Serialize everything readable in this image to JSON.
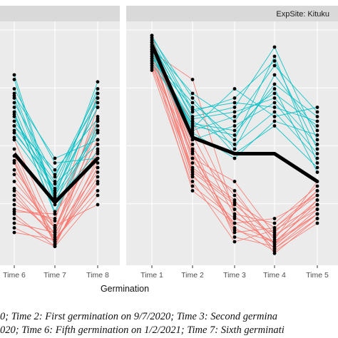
{
  "chart_data": {
    "type": "line",
    "xlabel": "Germination",
    "ylabel": "",
    "panels": [
      {
        "strip": "",
        "categories": [
          "Time 6",
          "Time 7",
          "Time 8"
        ],
        "ylim": [
          0,
          1
        ],
        "mean_values": [
          0.46,
          0.25,
          0.44
        ],
        "series": [
          {
            "group": "red",
            "values": [
              [
                0.21,
                0.2,
                0.46
              ],
              [
                0.28,
                0.1,
                0.42
              ],
              [
                0.34,
                0.14,
                0.52
              ],
              [
                0.16,
                0.12,
                0.38
              ],
              [
                0.43,
                0.07,
                0.6
              ],
              [
                0.12,
                0.09,
                0.3
              ],
              [
                0.24,
                0.17,
                0.72
              ],
              [
                0.48,
                0.08,
                0.34
              ],
              [
                0.37,
                0.11,
                0.48
              ],
              [
                0.2,
                0.06,
                0.28
              ],
              [
                0.31,
                0.14,
                0.56
              ],
              [
                0.42,
                0.07,
                0.4
              ],
              [
                0.26,
                0.12,
                0.66
              ],
              [
                0.18,
                0.08,
                0.36
              ],
              [
                0.39,
                0.15,
                0.24
              ],
              [
                0.14,
                0.06,
                0.44
              ],
              [
                0.52,
                0.13,
                0.52
              ],
              [
                0.3,
                0.09,
                0.33
              ],
              [
                0.22,
                0.18,
                0.62
              ],
              [
                0.45,
                0.07,
                0.4
              ]
            ]
          },
          {
            "group": "cyan",
            "values": [
              [
                0.74,
                0.42,
                0.44
              ],
              [
                0.68,
                0.36,
                0.72
              ],
              [
                0.62,
                0.3,
                0.66
              ],
              [
                0.72,
                0.28,
                0.56
              ],
              [
                0.58,
                0.39,
                0.61
              ],
              [
                0.66,
                0.24,
                0.7
              ],
              [
                0.55,
                0.33,
                0.5
              ],
              [
                0.7,
                0.27,
                0.77
              ],
              [
                0.64,
                0.2,
                0.58
              ],
              [
                0.6,
                0.37,
                0.68
              ],
              [
                0.78,
                0.25,
                0.47
              ],
              [
                0.56,
                0.31,
                0.74
              ],
              [
                0.63,
                0.21,
                0.6
              ],
              [
                0.71,
                0.44,
                0.52
              ],
              [
                0.53,
                0.29,
                0.66
              ],
              [
                0.8,
                0.26,
                0.55
              ],
              [
                0.58,
                0.34,
                0.7
              ]
            ]
          }
        ]
      },
      {
        "strip": "ExpSite: Kituku",
        "categories": [
          "Time 1",
          "Time 2",
          "Time 3",
          "Time 4",
          "Time 5"
        ],
        "ylim": [
          0,
          1
        ],
        "mean_values": [
          0.93,
          0.53,
          0.46,
          0.46,
          0.34
        ],
        "series": [
          {
            "group": "red",
            "values": [
              [
                0.86,
                0.3,
                0.16,
                0.08,
                0.24
              ],
              [
                0.9,
                0.36,
                0.22,
                0.05,
                0.2
              ],
              [
                0.94,
                0.44,
                0.12,
                0.14,
                0.28
              ],
              [
                0.88,
                0.4,
                0.26,
                0.03,
                0.18
              ],
              [
                0.82,
                0.32,
                0.18,
                0.12,
                0.3
              ],
              [
                0.92,
                0.5,
                0.1,
                0.06,
                0.22
              ],
              [
                0.95,
                0.38,
                0.24,
                0.1,
                0.26
              ],
              [
                0.84,
                0.46,
                0.14,
                0.04,
                0.16
              ],
              [
                0.9,
                0.78,
                0.2,
                0.16,
                0.32
              ],
              [
                0.96,
                0.42,
                0.3,
                0.07,
                0.2
              ],
              [
                0.87,
                0.34,
                0.08,
                0.13,
                0.24
              ],
              [
                0.93,
                0.48,
                0.28,
                0.09,
                0.34
              ],
              [
                0.85,
                0.6,
                0.22,
                0.05,
                0.18
              ],
              [
                0.91,
                0.37,
                0.16,
                0.18,
                0.28
              ],
              [
                0.97,
                0.44,
                0.34,
                0.11,
                0.22
              ],
              [
                0.89,
                0.54,
                0.19,
                0.07,
                0.26
              ],
              [
                0.83,
                0.39,
                0.25,
                0.14,
                0.3
              ],
              [
                0.94,
                0.47,
                0.13,
                0.08,
                0.2
              ]
            ]
          },
          {
            "group": "cyan",
            "values": [
              [
                0.92,
                0.56,
                0.62,
                0.72,
                0.58
              ],
              [
                0.88,
                0.6,
                0.5,
                0.64,
                0.44
              ],
              [
                0.95,
                0.64,
                0.7,
                0.86,
                0.48
              ],
              [
                0.9,
                0.58,
                0.54,
                0.76,
                0.62
              ],
              [
                0.86,
                0.66,
                0.46,
                0.58,
                0.4
              ],
              [
                0.93,
                0.62,
                0.66,
                0.92,
                0.52
              ],
              [
                0.89,
                0.52,
                0.58,
                0.68,
                0.46
              ],
              [
                0.96,
                0.7,
                0.48,
                0.8,
                0.56
              ],
              [
                0.91,
                0.57,
                0.74,
                0.62,
                0.66
              ],
              [
                0.87,
                0.68,
                0.52,
                0.88,
                0.42
              ],
              [
                0.94,
                0.61,
                0.64,
                0.7,
                0.5
              ],
              [
                0.9,
                0.55,
                0.44,
                0.6,
                0.54
              ],
              [
                0.92,
                0.72,
                0.6,
                0.84,
                0.64
              ],
              [
                0.85,
                0.59,
                0.56,
                0.74,
                0.38
              ],
              [
                0.97,
                0.65,
                0.68,
                0.66,
                0.6
              ]
            ]
          }
        ]
      }
    ],
    "group_colors": {
      "red": "#f8766d",
      "cyan": "#00bfc4",
      "mean": "#000000"
    }
  },
  "caption": {
    "line1": "0; Time 2: First germination on 9/7/2020; Time 3: Second germina",
    "line2": "020; Time 6: Fifth germination on 1/2/2021; Time 7: Sixth germinati"
  },
  "colors": {
    "panel_background": "#ebebeb",
    "gridline": "#ffffff",
    "strip_background": "#d9d9d9"
  }
}
